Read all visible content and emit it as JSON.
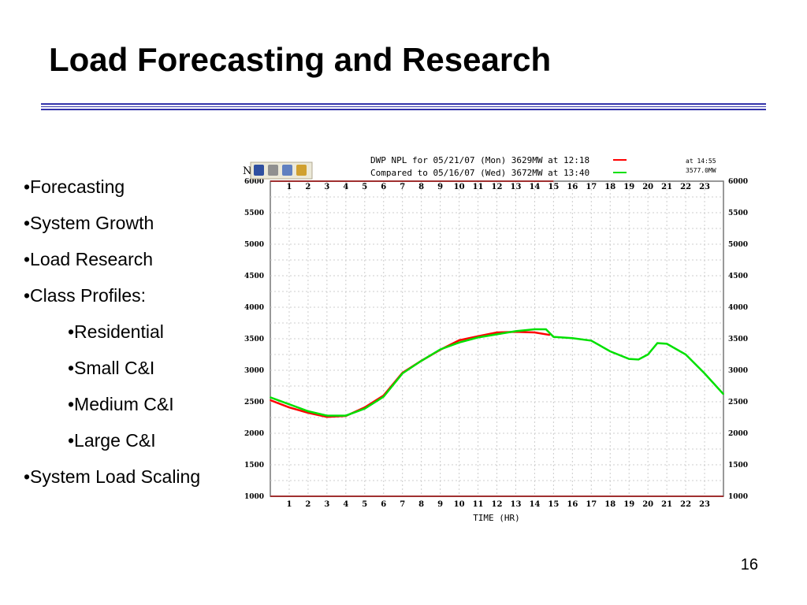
{
  "slide": {
    "title": "Load Forecasting and Research",
    "page_number": "16",
    "bullets": [
      {
        "text": "•Forecasting",
        "level": 1
      },
      {
        "text": "•System Growth",
        "level": 1
      },
      {
        "text": "•Load Research",
        "level": 1
      },
      {
        "text": "•Class Profiles:",
        "level": 1
      },
      {
        "text": "•Residential",
        "level": 2
      },
      {
        "text": "•Small C&I",
        "level": 2
      },
      {
        "text": "•Medium C&I",
        "level": 2
      },
      {
        "text": "•Large C&I",
        "level": 2
      },
      {
        "text": "•System Load Scaling",
        "level": 1
      }
    ]
  },
  "toolbar": {
    "prefix": "N",
    "icons": [
      "save-icon",
      "print-icon",
      "email-icon",
      "export-icon"
    ]
  },
  "chart_data": {
    "type": "line",
    "title_line1": "DWP NPL for 05/21/07 (Mon) 3629MW at 12:18",
    "title_line2": "Compared to 05/16/07 (Wed) 3672MW at 13:40",
    "annotation_time": "at 14:55",
    "annotation_value": "3577.0MW",
    "xlabel": "TIME (HR)",
    "xlim": [
      0,
      24
    ],
    "ylim": [
      1000,
      6000
    ],
    "xticks": [
      1,
      2,
      3,
      4,
      5,
      6,
      7,
      8,
      9,
      10,
      11,
      12,
      13,
      14,
      15,
      16,
      17,
      18,
      19,
      20,
      21,
      22,
      23
    ],
    "yticks": [
      1000,
      1500,
      2000,
      2500,
      3000,
      3500,
      4000,
      4500,
      5000,
      5500,
      6000
    ],
    "grid": true,
    "series": [
      {
        "color": "#ff0000",
        "x": [
          0,
          1,
          2,
          3,
          4,
          5,
          6,
          7,
          8,
          9,
          10,
          11,
          12,
          13,
          14,
          14.8
        ],
        "y": [
          2525,
          2410,
          2325,
          2260,
          2275,
          2410,
          2600,
          2960,
          3150,
          3325,
          3475,
          3540,
          3600,
          3610,
          3600,
          3560
        ]
      },
      {
        "color": "#00e000",
        "x": [
          0,
          1,
          2,
          3,
          4,
          5,
          6,
          7,
          8,
          9,
          10,
          11,
          12,
          13,
          14,
          14.6,
          15,
          16,
          17,
          18,
          19,
          19.5,
          20,
          20.5,
          21,
          22,
          23,
          24
        ],
        "y": [
          2570,
          2460,
          2350,
          2280,
          2280,
          2390,
          2580,
          2950,
          3150,
          3330,
          3440,
          3520,
          3570,
          3620,
          3650,
          3650,
          3530,
          3510,
          3470,
          3300,
          3180,
          3170,
          3250,
          3430,
          3420,
          3250,
          2950,
          2620
        ]
      }
    ]
  }
}
